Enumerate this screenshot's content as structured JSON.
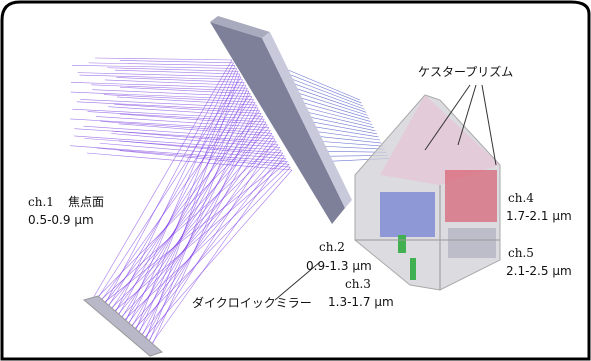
{
  "prism_label": "ケスタープリズム",
  "mirror_label": "ダイクロイックミラー",
  "channels": [
    {
      "name": "ch.1",
      "extra": "焦点面",
      "range": "0.5-0.9 μm"
    },
    {
      "name": "ch.2",
      "range": "0.9-1.3 μm"
    },
    {
      "name": "ch.3",
      "range": "1.3-1.7 μm"
    },
    {
      "name": "ch.4",
      "range": "1.7-2.1 μm"
    },
    {
      "name": "ch.5",
      "range": "2.1-2.5 μm"
    }
  ]
}
